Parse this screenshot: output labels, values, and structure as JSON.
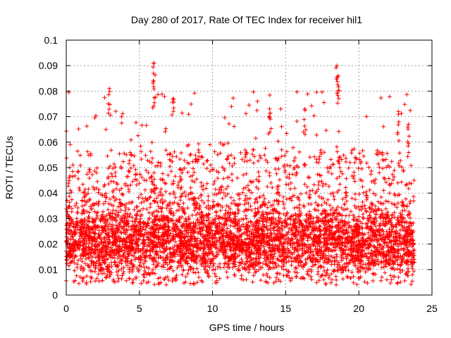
{
  "chart_data": {
    "type": "scatter",
    "title": "Day 280 of 2017, Rate Of TEC Index for receiver hil1",
    "xlabel": "GPS time / hours",
    "ylabel": "ROTI / TECUs",
    "xlim": [
      0,
      25
    ],
    "ylim": [
      0,
      0.1
    ],
    "xticks": [
      0,
      5,
      10,
      15,
      20,
      25
    ],
    "yticks": [
      0,
      0.01,
      0.02,
      0.03,
      0.04,
      0.05,
      0.06,
      0.07,
      0.08,
      0.09,
      0.1
    ],
    "xtick_labels": [
      "0",
      "5",
      "10",
      "15",
      "20",
      "25"
    ],
    "ytick_labels": [
      "0",
      "0.01",
      "0.02",
      "0.03",
      "0.04",
      "0.05",
      "0.06",
      "0.07",
      "0.08",
      "0.09",
      "0.1"
    ],
    "grid": true,
    "marker": "+",
    "color": "#ff0000",
    "x_range_observed": [
      0,
      23.8
    ],
    "typical_band": [
      0.008,
      0.035
    ],
    "notable_peaks": [
      {
        "x": 2.95,
        "y": 0.081
      },
      {
        "x": 6.0,
        "y": 0.091
      },
      {
        "x": 5.95,
        "y": 0.084
      },
      {
        "x": 7.3,
        "y": 0.077
      },
      {
        "x": 13.9,
        "y": 0.073
      },
      {
        "x": 16.3,
        "y": 0.073
      },
      {
        "x": 18.5,
        "y": 0.09
      },
      {
        "x": 18.6,
        "y": 0.086
      },
      {
        "x": 22.7,
        "y": 0.072
      },
      {
        "x": 23.4,
        "y": 0.067
      }
    ]
  }
}
